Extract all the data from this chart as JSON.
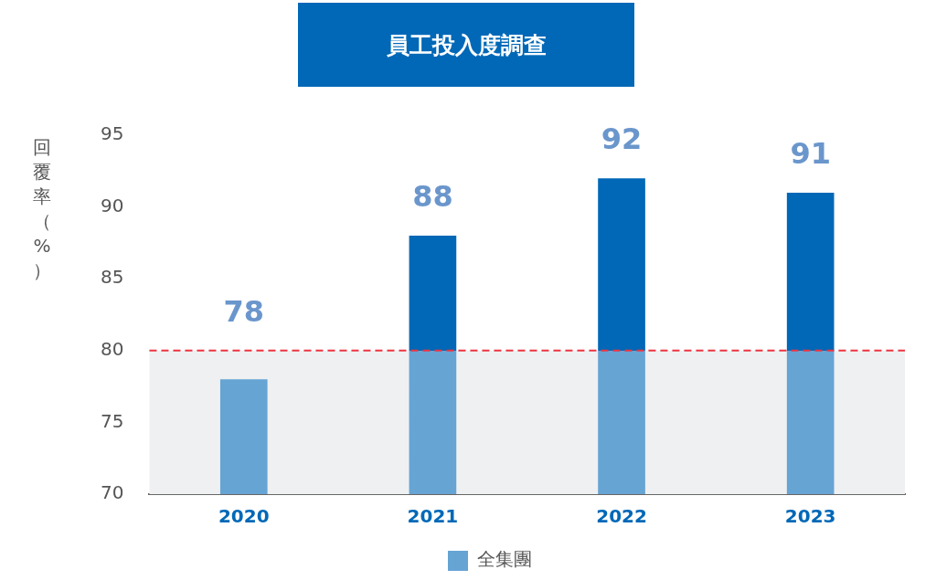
{
  "chart_data": {
    "type": "bar",
    "title": "員工投入度調查",
    "ylabel": "回覆率（%）",
    "categories": [
      "2020",
      "2021",
      "2022",
      "2023"
    ],
    "series": [
      {
        "name": "全集團",
        "color": "#0068b7",
        "values": [
          78,
          88,
          92,
          91
        ]
      }
    ],
    "ylim": [
      70,
      95
    ],
    "yticks": [
      70,
      75,
      80,
      85,
      90,
      95
    ],
    "grid": false,
    "legend": "bottom",
    "data_labels": true,
    "ref_lines": [
      {
        "axis": "y",
        "value": 80,
        "color": "#ee3340",
        "line_style": "dashed"
      }
    ],
    "bands": [
      {
        "axis": "y",
        "from": 70,
        "to": 80,
        "color": "#eff0f2"
      }
    ]
  }
}
